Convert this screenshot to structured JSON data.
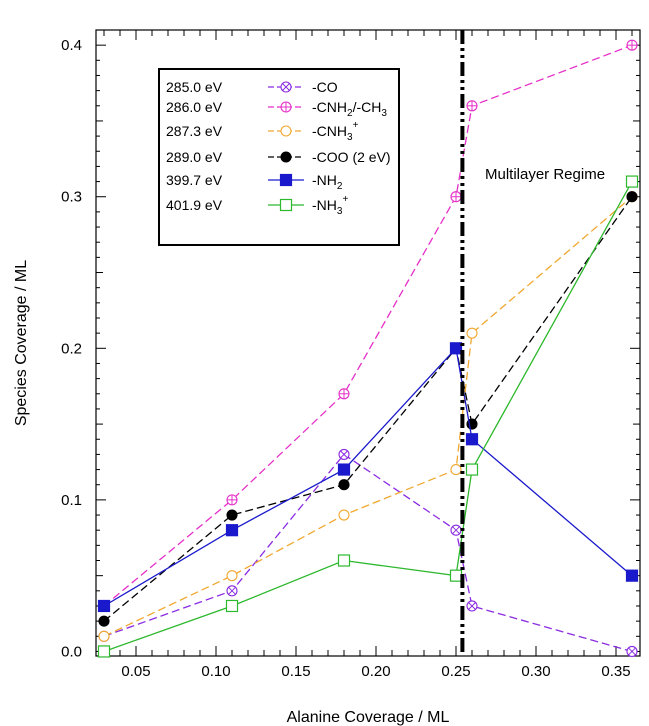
{
  "chart_data": {
    "type": "line",
    "title": "",
    "xlabel": "Alanine Coverage / ML",
    "ylabel": "Species Coverage / ML",
    "xlim": [
      0.025,
      0.365
    ],
    "ylim": [
      -0.003,
      0.41
    ],
    "x_ticks": [
      "0.05",
      "0.10",
      "0.15",
      "0.20",
      "0.25",
      "0.30",
      "0.35"
    ],
    "x_tick_values": [
      0.05,
      0.1,
      0.15,
      0.2,
      0.25,
      0.3,
      0.35
    ],
    "y_ticks": [
      "0.0",
      "0.1",
      "0.2",
      "0.3",
      "0.4"
    ],
    "y_tick_values": [
      0.0,
      0.1,
      0.2,
      0.3,
      0.4
    ],
    "x": [
      0.03,
      0.11,
      0.18,
      0.25,
      0.26,
      0.36
    ],
    "grid": false,
    "legend_position": "top-left",
    "vertical_line": {
      "x": 0.254,
      "style": "dash-dot-dot",
      "color": "#000000"
    },
    "annotation": "Multilayer Regime",
    "series": [
      {
        "energy": "285.0  eV",
        "name": "-CO",
        "color": "#8a2be2",
        "marker": "circle-x",
        "dash": "dashed",
        "filled": false,
        "values": [
          0.01,
          0.04,
          0.13,
          0.08,
          0.03,
          0.0
        ]
      },
      {
        "energy": "286.0 eV",
        "name": "-CNH",
        "sub": "2",
        "name_tail": "/-CH",
        "sub2": "3",
        "color": "#e62fc8",
        "marker": "circle-plus",
        "dash": "dashed",
        "filled": false,
        "values": [
          0.03,
          0.1,
          0.17,
          0.3,
          0.36,
          0.4
        ]
      },
      {
        "energy": "287.3 eV",
        "name": "-CNH",
        "sub": "3",
        "sup": "+",
        "color": "#f0a830",
        "marker": "circle",
        "dash": "dashed",
        "filled": false,
        "values": [
          0.01,
          0.05,
          0.09,
          0.12,
          0.21,
          0.3
        ]
      },
      {
        "energy": "289.0 eV",
        "name": "-COO (2 eV)",
        "color": "#000000",
        "marker": "circle",
        "dash": "dashed",
        "filled": true,
        "values": [
          0.02,
          0.09,
          0.11,
          0.2,
          0.15,
          0.3
        ]
      },
      {
        "energy": "399.7 eV",
        "name": "-NH",
        "sub": "2",
        "color": "#1a1acc",
        "marker": "square",
        "dash": "solid",
        "filled": true,
        "values": [
          0.03,
          0.08,
          0.12,
          0.2,
          0.14,
          0.05
        ]
      },
      {
        "energy": "401.9 eV",
        "name": "-NH",
        "sub": "3",
        "sup": "+",
        "color": "#2db82d",
        "marker": "square",
        "dash": "solid",
        "filled": false,
        "values": [
          0.0,
          0.03,
          0.06,
          0.05,
          0.12,
          0.31
        ]
      }
    ]
  }
}
